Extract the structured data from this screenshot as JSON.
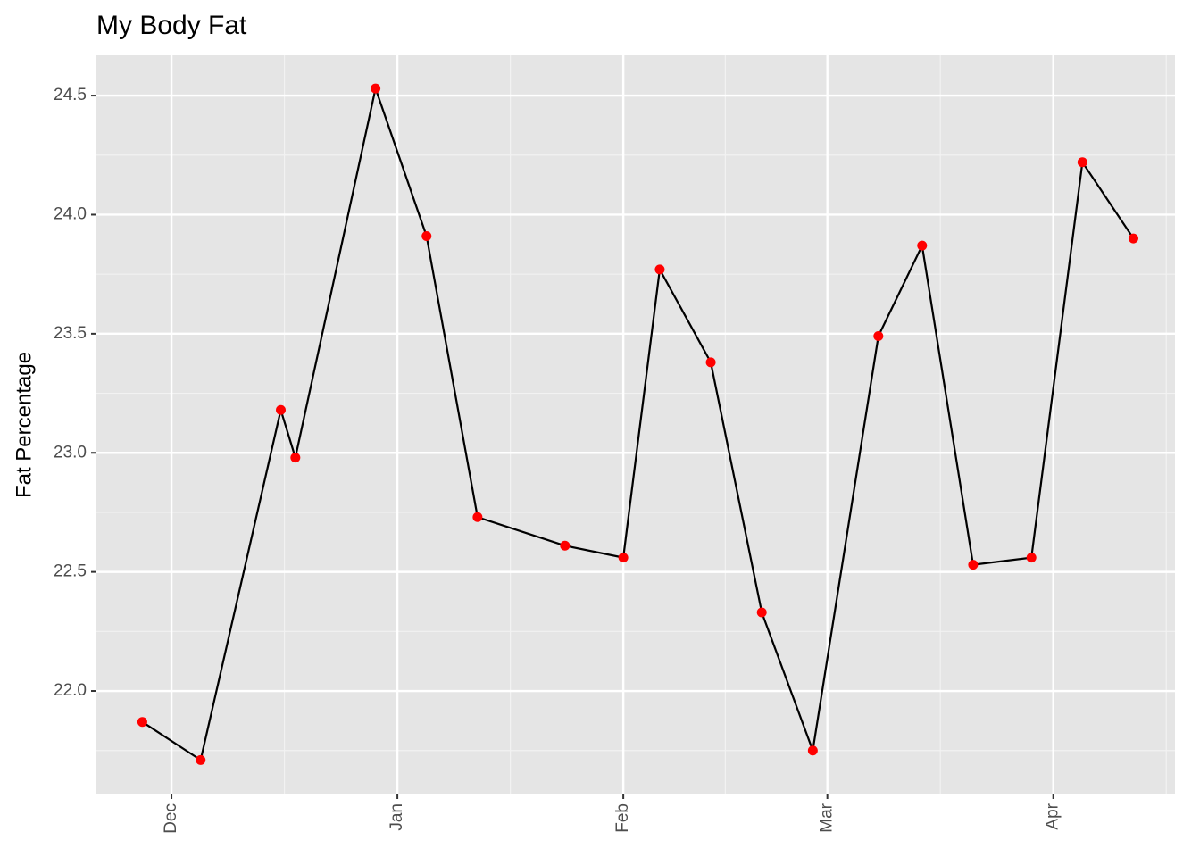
{
  "chart_data": {
    "type": "line",
    "title": "My Body Fat",
    "y_label": "Fat Percentage",
    "x": [
      -4,
      4,
      15,
      17,
      28,
      35,
      42,
      54,
      62,
      67,
      74,
      81,
      88,
      97,
      103,
      110,
      118,
      125,
      132
    ],
    "series": [
      {
        "line_color": "#000000",
        "color": "#ff0000",
        "values": [
          21.87,
          21.71,
          23.18,
          22.98,
          24.53,
          23.91,
          22.73,
          22.61,
          22.56,
          23.77,
          23.38,
          22.33,
          21.75,
          23.49,
          23.87,
          22.53,
          22.56,
          24.22,
          23.9
        ]
      }
    ],
    "xlim": [
      -10.3,
      137.7
    ],
    "xticks": [
      {
        "value": 0,
        "label": "Dec"
      },
      {
        "value": 31,
        "label": "Jan"
      },
      {
        "value": 62,
        "label": "Feb"
      },
      {
        "value": 90,
        "label": "Mar"
      },
      {
        "value": 121,
        "label": "Apr"
      }
    ],
    "ylim": [
      21.569,
      24.669
    ],
    "yticks": [
      {
        "value": 22,
        "label": "22.0"
      },
      22.5,
      {
        "value": 23,
        "label": "23.0"
      },
      23.5,
      {
        "value": 24,
        "label": "24.0"
      },
      24.5
    ],
    "grid": true
  }
}
